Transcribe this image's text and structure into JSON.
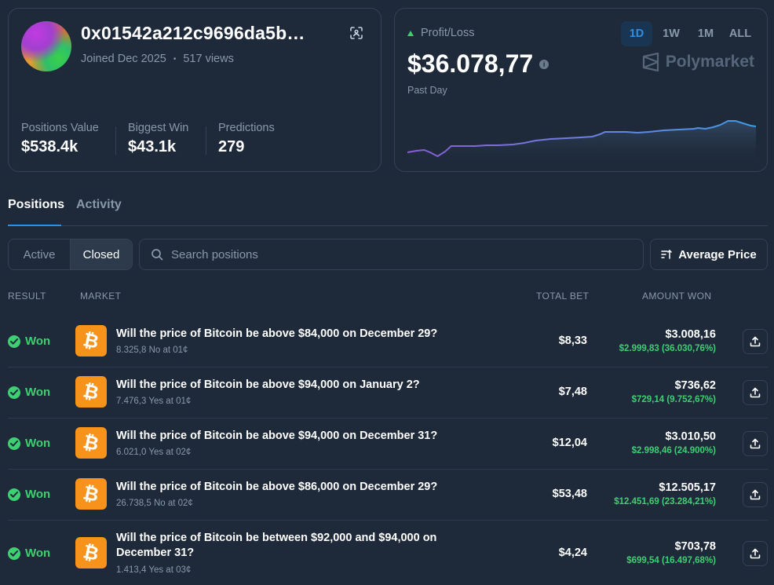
{
  "profile": {
    "address": "0x01542a212c9696da5b…",
    "joined": "Joined Dec 2025",
    "views": "517 views",
    "stats": [
      {
        "label": "Positions Value",
        "value": "$538.4k"
      },
      {
        "label": "Biggest Win",
        "value": "$43.1k"
      },
      {
        "label": "Predictions",
        "value": "279"
      }
    ]
  },
  "pnl": {
    "label": "Profit/Loss",
    "value": "$36.078,77",
    "period": "Past Day",
    "brand": "Polymarket",
    "ranges": [
      "1D",
      "1W",
      "1M",
      "ALL"
    ],
    "active_range": "1D",
    "accent_color": "#2e8fe0",
    "positive_color": "#3ecf72"
  },
  "tabs": {
    "positions": "Positions",
    "activity": "Activity"
  },
  "filters": {
    "active": "Active",
    "closed": "Closed",
    "search_placeholder": "Search positions",
    "sort_label": "Average Price"
  },
  "columns": {
    "result": "RESULT",
    "market": "MARKET",
    "total_bet": "TOTAL BET",
    "amount_won": "AMOUNT WON"
  },
  "positions": [
    {
      "result": "Won",
      "title": "Will the price of Bitcoin be above $84,000 on December 29?",
      "sub": "8.325,8 No at 01¢",
      "total_bet": "$8,33",
      "amount": "$3.008,16",
      "gain": "$2.999,83 (36.030,76%)"
    },
    {
      "result": "Won",
      "title": "Will the price of Bitcoin be above $94,000 on January 2?",
      "sub": "7.476,3 Yes at 01¢",
      "total_bet": "$7,48",
      "amount": "$736,62",
      "gain": "$729,14 (9.752,67%)"
    },
    {
      "result": "Won",
      "title": "Will the price of Bitcoin be above $94,000 on December 31?",
      "sub": "6.021,0 Yes at 02¢",
      "total_bet": "$12,04",
      "amount": "$3.010,50",
      "gain": "$2.998,46 (24.900%)"
    },
    {
      "result": "Won",
      "title": "Will the price of Bitcoin be above $86,000 on December 29?",
      "sub": "26.738,5 No at 02¢",
      "total_bet": "$53,48",
      "amount": "$12.505,17",
      "gain": "$12.451,69 (23.284,21%)"
    },
    {
      "result": "Won",
      "title": "Will the price of Bitcoin be between $92,000 and $94,000 on December 31?",
      "sub": "1.413,4 Yes at 03¢",
      "total_bet": "$4,24",
      "amount": "$703,78",
      "gain": "$699,54 (16.497,68%)"
    }
  ],
  "icons": {
    "scan": "scan-icon",
    "search": "search-icon",
    "sort": "sort-icon",
    "share": "share-icon",
    "check": "check-circle-icon",
    "coin": "bitcoin-icon"
  }
}
